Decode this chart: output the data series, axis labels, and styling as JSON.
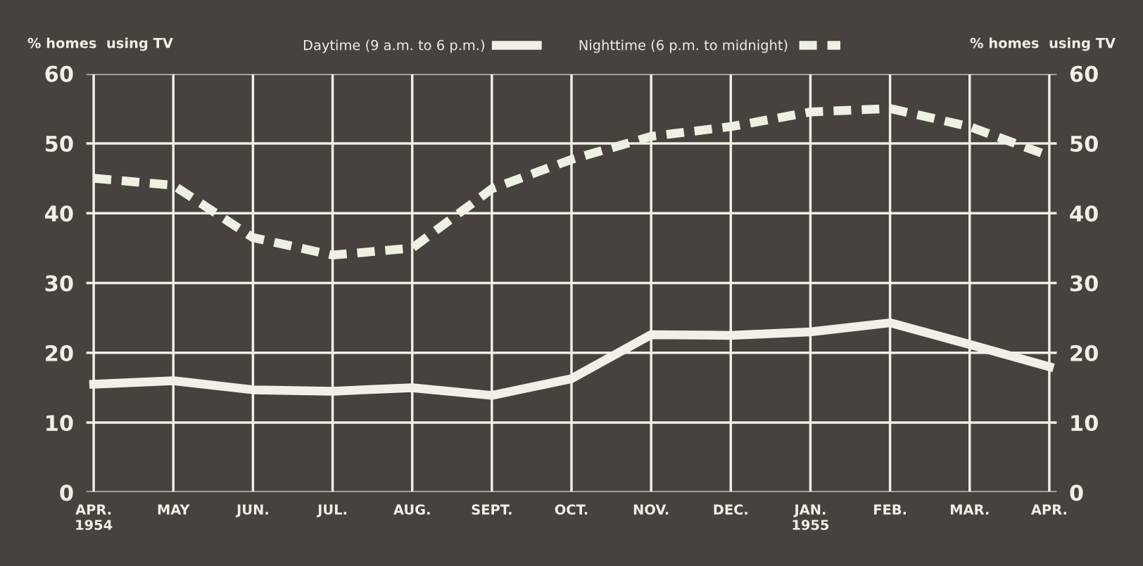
{
  "chart_data": {
    "type": "line",
    "categories": [
      "APR.\n1954",
      "MAY",
      "JUN.",
      "JUL.",
      "AUG.",
      "SEPT.",
      "OCT.",
      "NOV.",
      "DEC.",
      "JAN.\n1955",
      "FEB.",
      "MAR.",
      "APR."
    ],
    "series": [
      {
        "name": "Daytime (9 a.m. to 6 p.m.)",
        "color": "#f2f0e6",
        "line_style": "solid",
        "values": [
          15.5,
          16,
          14.7,
          14.5,
          15,
          13.9,
          16.3,
          22.6,
          22.5,
          23,
          24.3,
          21.2,
          18
        ]
      },
      {
        "name": "Nighttime (6 p.m. to midnight)",
        "color": "#eef0e2",
        "line_style": "dashed",
        "values": [
          45,
          44,
          36.5,
          34,
          35,
          43.5,
          47.7,
          51,
          52.4,
          54.5,
          55,
          52.4,
          48.2
        ]
      }
    ],
    "ylabel": "% homes  using TV",
    "y2label": "% homes  using TV",
    "ylim": [
      0,
      60
    ],
    "yticks": [
      0,
      10,
      20,
      30,
      40,
      50,
      60
    ],
    "y2lim": [
      0,
      60
    ],
    "y2ticks": [
      0,
      10,
      20,
      30,
      40,
      50,
      60
    ],
    "grid": true,
    "legend": "top",
    "marker": "none"
  }
}
